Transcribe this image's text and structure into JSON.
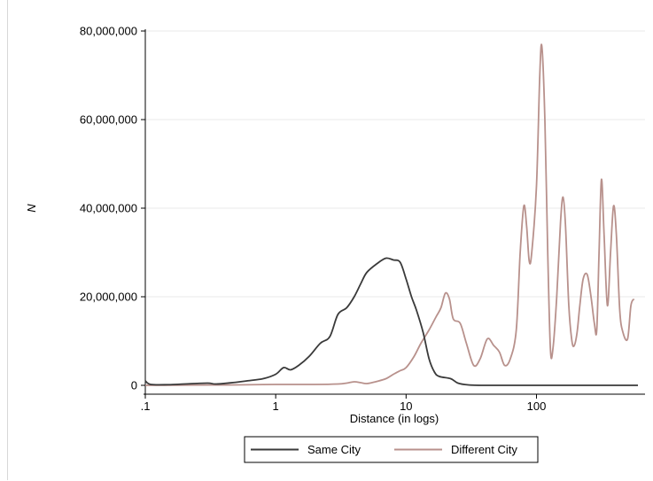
{
  "chart_data": {
    "type": "line",
    "xlabel": "Distance (in logs)",
    "ylabel": "N",
    "x_scale": "log",
    "xlim": [
      0.1,
      600
    ],
    "ylim": [
      0,
      80000000
    ],
    "x_ticks": [
      {
        "value": 0.1,
        "label": ".1"
      },
      {
        "value": 1,
        "label": "1"
      },
      {
        "value": 10,
        "label": "10"
      },
      {
        "value": 100,
        "label": "100"
      }
    ],
    "y_ticks": [
      {
        "value": 0,
        "label": "0"
      },
      {
        "value": 20000000,
        "label": "20,000,000"
      },
      {
        "value": 40000000,
        "label": "40,000,000"
      },
      {
        "value": 60000000,
        "label": "60,000,000"
      },
      {
        "value": 80000000,
        "label": "80,000,000"
      }
    ],
    "grid": "horizontal",
    "legend_position": "bottom",
    "series": [
      {
        "name": "Same City",
        "color": "#3a3a3a",
        "points": [
          [
            0.1,
            1000000
          ],
          [
            0.11,
            200000
          ],
          [
            0.15,
            150000
          ],
          [
            0.2,
            300000
          ],
          [
            0.3,
            500000
          ],
          [
            0.35,
            300000
          ],
          [
            0.5,
            700000
          ],
          [
            0.6,
            1000000
          ],
          [
            0.8,
            1500000
          ],
          [
            1.0,
            2500000
          ],
          [
            1.15,
            4000000
          ],
          [
            1.3,
            3500000
          ],
          [
            1.5,
            4500000
          ],
          [
            1.8,
            6500000
          ],
          [
            2.2,
            9500000
          ],
          [
            2.6,
            11000000
          ],
          [
            3.0,
            16000000
          ],
          [
            3.5,
            17500000
          ],
          [
            4.0,
            20000000
          ],
          [
            4.5,
            23000000
          ],
          [
            5.0,
            25500000
          ],
          [
            6.0,
            27500000
          ],
          [
            7.0,
            28700000
          ],
          [
            8.0,
            28300000
          ],
          [
            9.0,
            27800000
          ],
          [
            10.0,
            24000000
          ],
          [
            11.0,
            20000000
          ],
          [
            12.0,
            17000000
          ],
          [
            13.5,
            12000000
          ],
          [
            15.0,
            6000000
          ],
          [
            16.5,
            3000000
          ],
          [
            18.0,
            2000000
          ],
          [
            22.0,
            1500000
          ],
          [
            25.0,
            500000
          ],
          [
            30.0,
            100000
          ],
          [
            40.0,
            0
          ],
          [
            100.0,
            0
          ],
          [
            600.0,
            0
          ]
        ]
      },
      {
        "name": "Different City",
        "color": "#b8918c",
        "points": [
          [
            0.1,
            0
          ],
          [
            0.2,
            50000
          ],
          [
            0.5,
            100000
          ],
          [
            1.0,
            200000
          ],
          [
            2.0,
            200000
          ],
          [
            3.0,
            300000
          ],
          [
            3.5,
            500000
          ],
          [
            4.0,
            800000
          ],
          [
            4.5,
            600000
          ],
          [
            5.0,
            400000
          ],
          [
            6.0,
            900000
          ],
          [
            7.0,
            1500000
          ],
          [
            8.0,
            2500000
          ],
          [
            9.0,
            3300000
          ],
          [
            10.0,
            4000000
          ],
          [
            11.5,
            6500000
          ],
          [
            13.0,
            9500000
          ],
          [
            15.0,
            12500000
          ],
          [
            17.0,
            15500000
          ],
          [
            18.5,
            17500000
          ],
          [
            20.0,
            20800000
          ],
          [
            21.5,
            19500000
          ],
          [
            23.0,
            15000000
          ],
          [
            26.0,
            14000000
          ],
          [
            29.0,
            9500000
          ],
          [
            33.0,
            4500000
          ],
          [
            37.0,
            6000000
          ],
          [
            42.0,
            10500000
          ],
          [
            47.0,
            9000000
          ],
          [
            52.0,
            7500000
          ],
          [
            57.0,
            4500000
          ],
          [
            63.0,
            6000000
          ],
          [
            70.0,
            12500000
          ],
          [
            75.0,
            30000000
          ],
          [
            80.0,
            40500000
          ],
          [
            84.0,
            36000000
          ],
          [
            88.0,
            28000000
          ],
          [
            92.0,
            30000000
          ],
          [
            100.0,
            45000000
          ],
          [
            106.0,
            70000000
          ],
          [
            110.0,
            76500000
          ],
          [
            116.0,
            60000000
          ],
          [
            122.0,
            30000000
          ],
          [
            128.0,
            8000000
          ],
          [
            134.0,
            8500000
          ],
          [
            143.0,
            20000000
          ],
          [
            153.0,
            37000000
          ],
          [
            160.0,
            42500000
          ],
          [
            167.0,
            36000000
          ],
          [
            177.0,
            18000000
          ],
          [
            187.0,
            10000000
          ],
          [
            195.0,
            9000000
          ],
          [
            205.0,
            12000000
          ],
          [
            215.0,
            18000000
          ],
          [
            228.0,
            24000000
          ],
          [
            245.0,
            25000000
          ],
          [
            262.0,
            20000000
          ],
          [
            278.0,
            14000000
          ],
          [
            290.0,
            12500000
          ],
          [
            302.0,
            30000000
          ],
          [
            315.0,
            46500000
          ],
          [
            330.0,
            34000000
          ],
          [
            350.0,
            18000000
          ],
          [
            370.0,
            30000000
          ],
          [
            390.0,
            40500000
          ],
          [
            410.0,
            34000000
          ],
          [
            435.0,
            17000000
          ],
          [
            460.0,
            12000000
          ],
          [
            500.0,
            10500000
          ],
          [
            530.0,
            18000000
          ],
          [
            560.0,
            19500000
          ]
        ]
      }
    ]
  }
}
